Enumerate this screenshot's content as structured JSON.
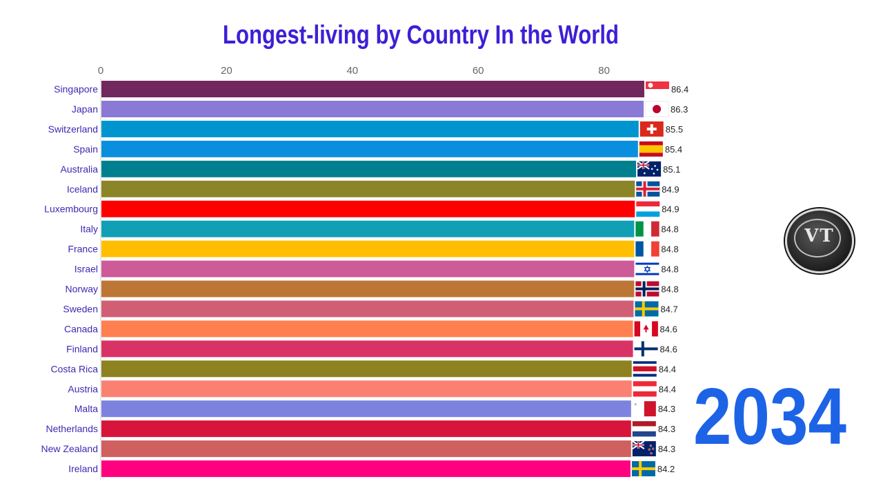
{
  "title": "Longest-living by Country In the World",
  "year": "2034",
  "colors": {
    "title": "#3d1fd6",
    "year": "#1d63e6",
    "category_label": "#3b2bb0"
  },
  "logo": {
    "text": "VT"
  },
  "chart_data": {
    "type": "bar",
    "orientation": "horizontal",
    "title": "Longest-living by Country In the World",
    "xlim": [
      0,
      85
    ],
    "xticks": [
      0,
      20,
      40,
      60,
      80
    ],
    "grid": false,
    "categories": [
      "Singapore",
      "Japan",
      "Switzerland",
      "Spain",
      "Australia",
      "Iceland",
      "Luxembourg",
      "Italy",
      "France",
      "Israel",
      "Norway",
      "Sweden",
      "Canada",
      "Finland",
      "Costa Rica",
      "Austria",
      "Malta",
      "Netherlands",
      "New Zealand",
      "Ireland"
    ],
    "values": [
      86.4,
      86.3,
      85.5,
      85.4,
      85.1,
      84.9,
      84.9,
      84.8,
      84.8,
      84.8,
      84.8,
      84.7,
      84.6,
      84.6,
      84.4,
      84.4,
      84.3,
      84.3,
      84.3,
      84.2
    ],
    "value_labels": [
      "86.4",
      "86.3",
      "85.5",
      "85.4",
      "85.1",
      "84.9",
      "84.9",
      "84.8",
      "84.8",
      "84.8",
      "84.8",
      "84.7",
      "84.6",
      "84.6",
      "84.4",
      "84.4",
      "84.3",
      "84.3",
      "84.3",
      "84.2"
    ],
    "bar_colors": [
      "#70285e",
      "#8b79d6",
      "#0095cf",
      "#0a8fde",
      "#00808e",
      "#8c8527",
      "#ff0000",
      "#119fb5",
      "#ffbf00",
      "#cc5b98",
      "#bd7636",
      "#d05f74",
      "#ff7f50",
      "#d93365",
      "#8e8120",
      "#fa8072",
      "#7e82df",
      "#d7143b",
      "#d05f5f",
      "#ff007f"
    ],
    "flags": [
      "singapore-flag-icon",
      "japan-flag-icon",
      "switzerland-flag-icon",
      "spain-flag-icon",
      "australia-flag-icon",
      "iceland-flag-icon",
      "luxembourg-flag-icon",
      "italy-flag-icon",
      "france-flag-icon",
      "israel-flag-icon",
      "norway-flag-icon",
      "sweden-flag-icon",
      "canada-flag-icon",
      "finland-flag-icon",
      "costa-rica-flag-icon",
      "austria-flag-icon",
      "malta-flag-icon",
      "netherlands-flag-icon",
      "new-zealand-flag-icon",
      "ireland-flag-icon"
    ]
  }
}
